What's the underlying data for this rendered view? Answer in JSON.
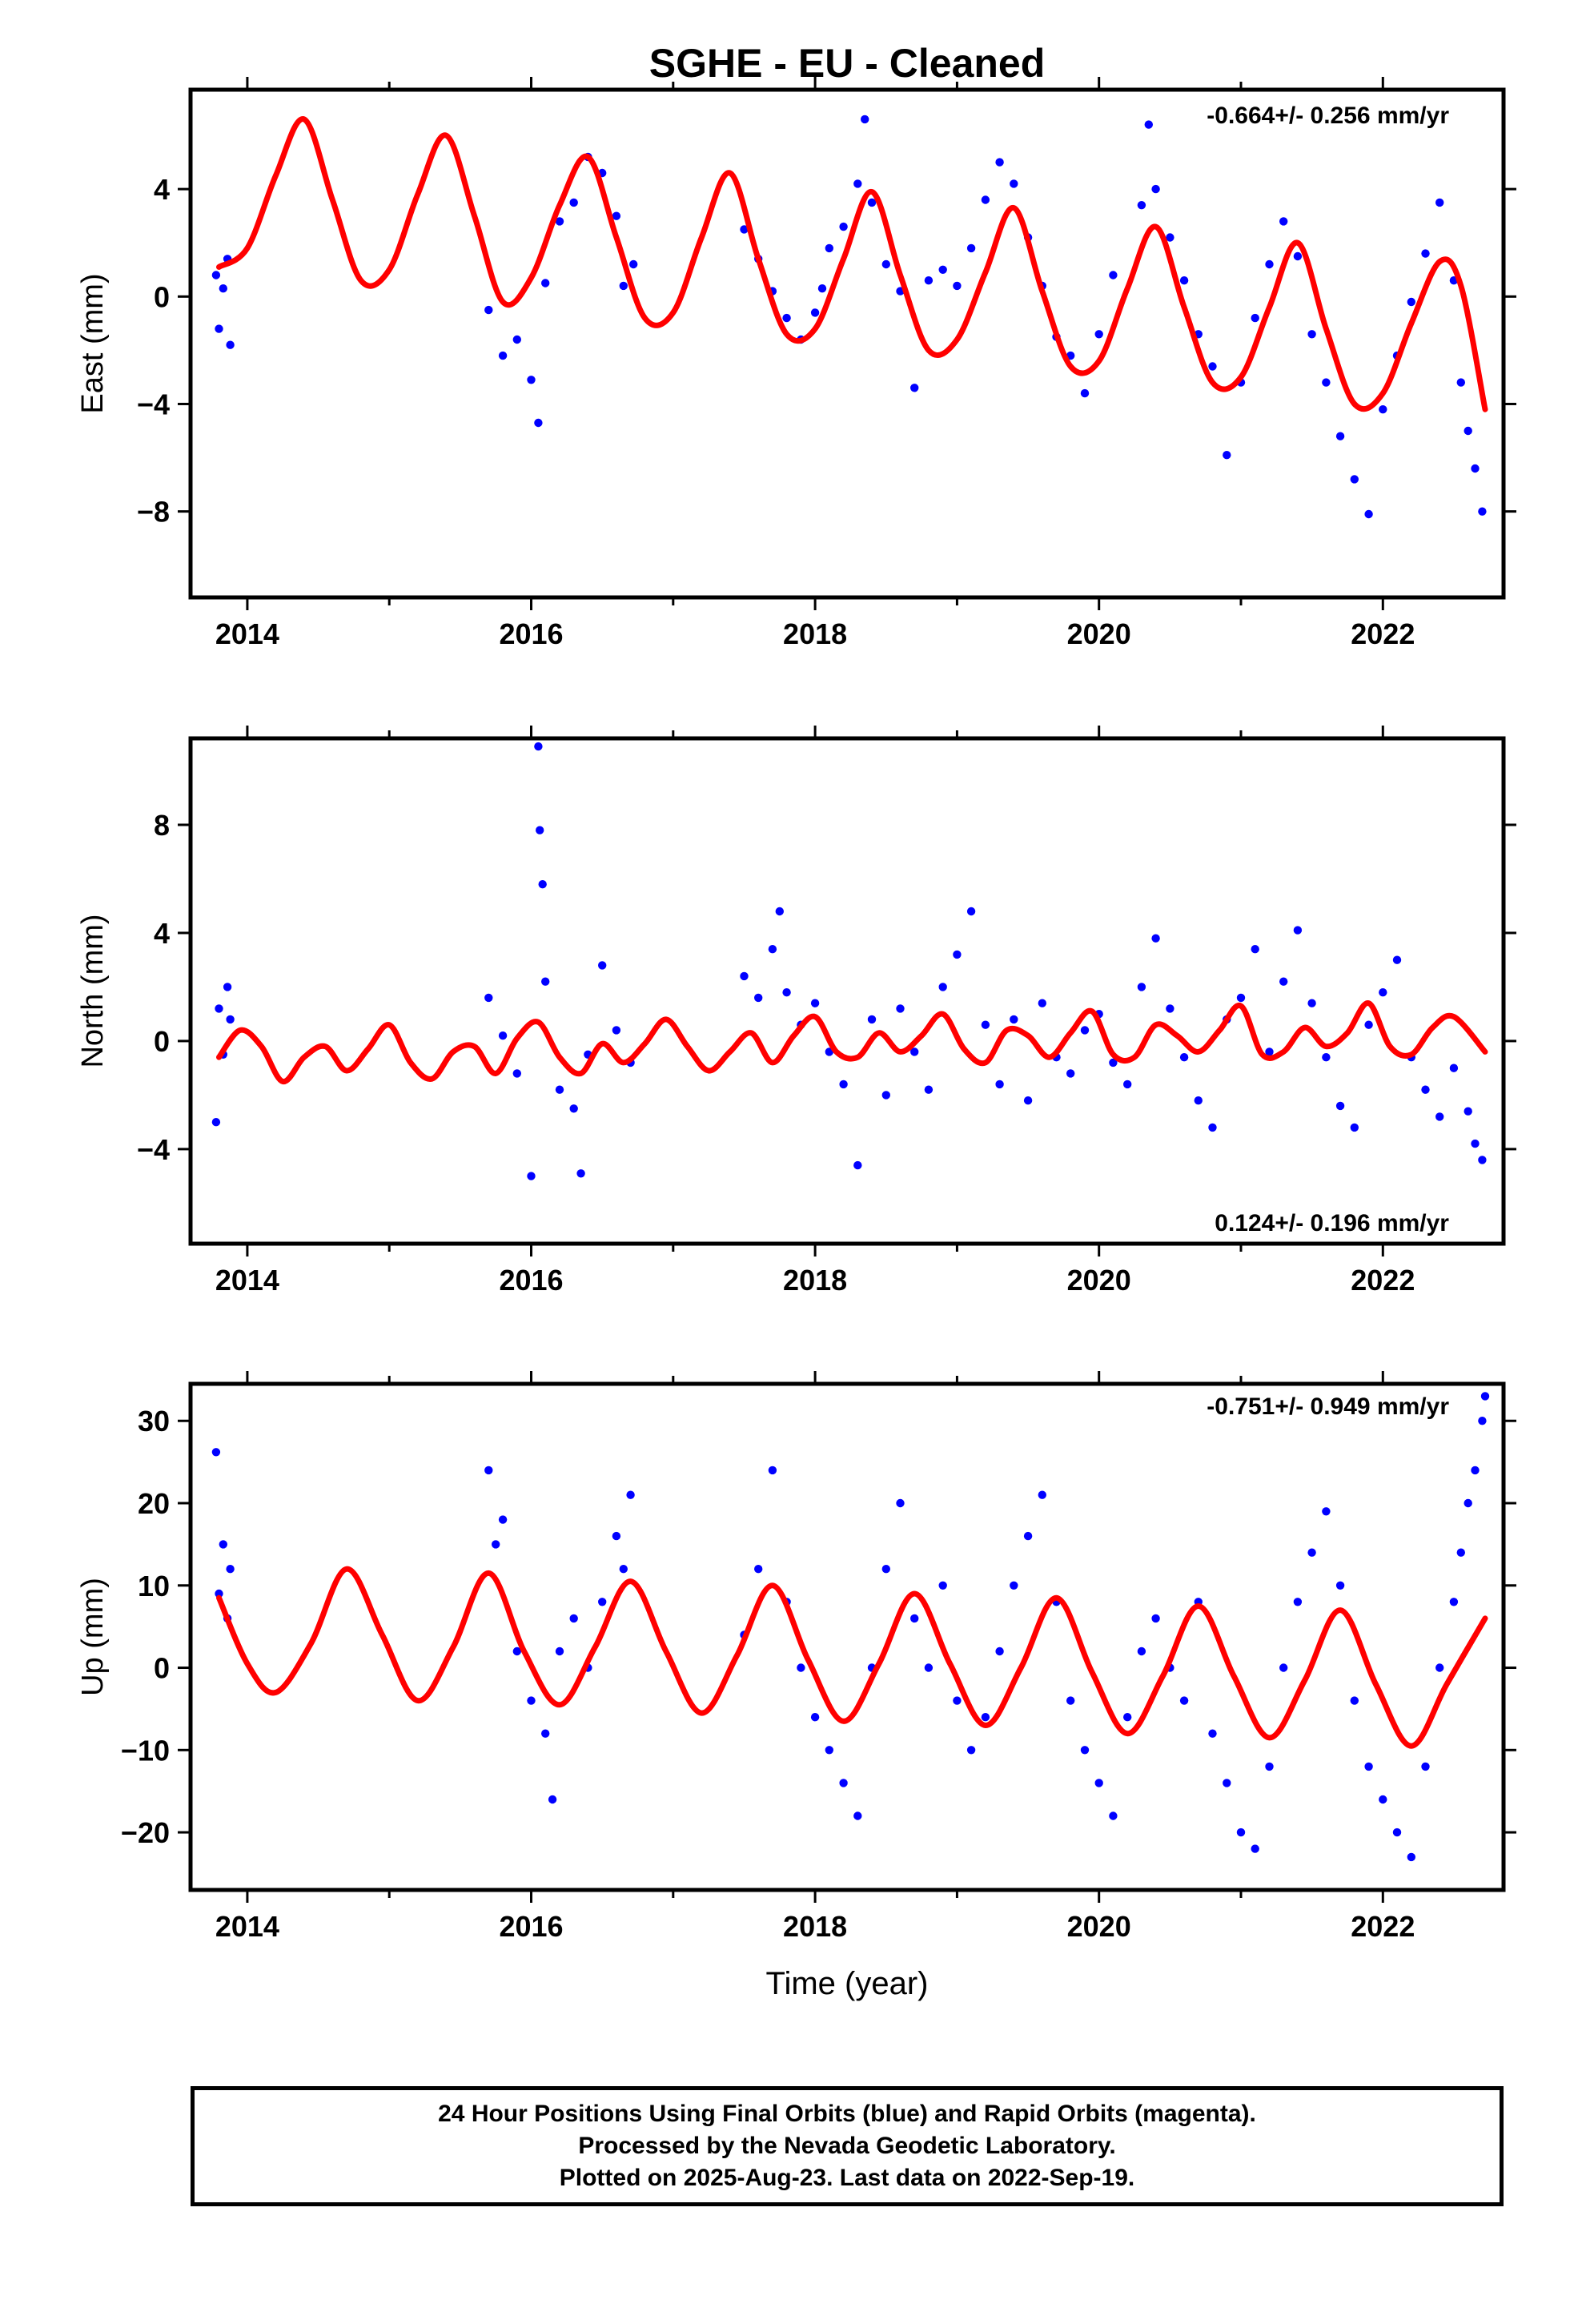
{
  "title": "SGHE  - EU - Cleaned",
  "xlabel": "Time (year)",
  "footer": {
    "line1": "24 Hour Positions Using Final Orbits (blue) and Rapid Orbits (magenta).",
    "line2": "Processed by the Nevada Geodetic Laboratory.",
    "line3": "Plotted on 2025-Aug-23. Last data on 2022-Sep-19."
  },
  "colors": {
    "points": "#0000ff",
    "model": "#ff0000",
    "frame": "#000000"
  },
  "chart_data": [
    {
      "type": "scatter",
      "ylabel": "East (mm)",
      "rate_label": "-0.664+/- 0.256 mm/yr",
      "xlim": [
        2013.6,
        2022.85
      ],
      "ylim": [
        -11.2,
        7.7
      ],
      "xticks": [
        2014,
        2016,
        2018,
        2020,
        2022
      ],
      "xticklabels": [
        "2014",
        "2016",
        "2018",
        "2020",
        "2022"
      ],
      "yticks": [
        -8,
        -4,
        0,
        4
      ],
      "yticklabels": [
        "−8",
        "−4",
        "0",
        "4"
      ],
      "series": [
        {
          "kind": "points",
          "x": [
            2013.78,
            2013.8,
            2013.83,
            2013.86,
            2013.88,
            2015.7,
            2015.8,
            2015.9,
            2016.0,
            2016.05,
            2016.1,
            2016.2,
            2016.3,
            2016.4,
            2016.5,
            2016.6,
            2016.65,
            2016.72,
            2017.5,
            2017.6,
            2017.7,
            2017.8,
            2017.9,
            2018.0,
            2018.05,
            2018.1,
            2018.2,
            2018.3,
            2018.35,
            2018.4,
            2018.5,
            2018.6,
            2018.7,
            2018.8,
            2018.9,
            2019.0,
            2019.1,
            2019.2,
            2019.3,
            2019.4,
            2019.5,
            2019.6,
            2019.7,
            2019.8,
            2019.9,
            2020.0,
            2020.1,
            2020.3,
            2020.35,
            2020.4,
            2020.5,
            2020.6,
            2020.7,
            2020.8,
            2020.9,
            2021.0,
            2021.1,
            2021.2,
            2021.3,
            2021.4,
            2021.5,
            2021.6,
            2021.7,
            2021.8,
            2021.9,
            2022.0,
            2022.1,
            2022.2,
            2022.3,
            2022.4,
            2022.5,
            2022.55,
            2022.6,
            2022.65,
            2022.7
          ],
          "y": [
            0.8,
            -1.2,
            0.3,
            1.4,
            -1.8,
            -0.5,
            -2.2,
            -1.6,
            -3.1,
            -4.7,
            0.5,
            2.8,
            3.5,
            5.2,
            4.6,
            3.0,
            0.4,
            1.2,
            2.5,
            1.4,
            0.2,
            -0.8,
            -1.6,
            -0.6,
            0.3,
            1.8,
            2.6,
            4.2,
            6.6,
            3.5,
            1.2,
            0.2,
            -3.4,
            0.6,
            1.0,
            0.4,
            1.8,
            3.6,
            5.0,
            4.2,
            2.2,
            0.4,
            -1.5,
            -2.2,
            -3.6,
            -1.4,
            0.8,
            3.4,
            6.4,
            4.0,
            2.2,
            0.6,
            -1.4,
            -2.6,
            -5.9,
            -3.2,
            -0.8,
            1.2,
            2.8,
            1.5,
            -1.4,
            -3.2,
            -5.2,
            -6.8,
            -8.1,
            -4.2,
            -2.2,
            -0.2,
            1.6,
            3.5,
            0.6,
            -3.2,
            -5.0,
            -6.4,
            -8.0
          ],
          "color": "#0000ff"
        },
        {
          "kind": "line",
          "x": [
            2013.8,
            2014.0,
            2014.2,
            2014.4,
            2014.6,
            2014.8,
            2015.0,
            2015.2,
            2015.4,
            2015.6,
            2015.8,
            2016.0,
            2016.2,
            2016.4,
            2016.6,
            2016.8,
            2017.0,
            2017.2,
            2017.4,
            2017.6,
            2017.8,
            2018.0,
            2018.2,
            2018.4,
            2018.6,
            2018.8,
            2019.0,
            2019.2,
            2019.4,
            2019.6,
            2019.8,
            2020.0,
            2020.2,
            2020.4,
            2020.6,
            2020.8,
            2021.0,
            2021.2,
            2021.4,
            2021.6,
            2021.8,
            2022.0,
            2022.2,
            2022.4,
            2022.55,
            2022.72
          ],
          "y": [
            1.1,
            1.8,
            4.5,
            6.6,
            3.6,
            0.6,
            1.0,
            3.8,
            6.0,
            3.0,
            -0.2,
            0.7,
            3.4,
            5.2,
            2.2,
            -0.8,
            -0.6,
            2.2,
            4.6,
            1.4,
            -1.4,
            -1.2,
            1.4,
            3.9,
            0.8,
            -2.0,
            -1.6,
            0.9,
            3.3,
            0.2,
            -2.6,
            -2.4,
            0.3,
            2.6,
            -0.4,
            -3.2,
            -3.0,
            -0.4,
            2.0,
            -1.2,
            -4.0,
            -3.6,
            -1.0,
            1.3,
            0.4,
            -4.2
          ],
          "color": "#ff0000"
        }
      ]
    },
    {
      "type": "scatter",
      "ylabel": "North (mm)",
      "rate_label": "0.124+/- 0.196 mm/yr",
      "xlim": [
        2013.6,
        2022.85
      ],
      "ylim": [
        -7.5,
        11.2
      ],
      "xticks": [
        2014,
        2016,
        2018,
        2020,
        2022
      ],
      "xticklabels": [
        "2014",
        "2016",
        "2018",
        "2020",
        "2022"
      ],
      "yticks": [
        -4,
        0,
        4,
        8
      ],
      "yticklabels": [
        "−4",
        "0",
        "4",
        "8"
      ],
      "series": [
        {
          "kind": "points",
          "x": [
            2013.78,
            2013.8,
            2013.83,
            2013.86,
            2013.88,
            2015.7,
            2015.8,
            2015.9,
            2016.0,
            2016.05,
            2016.06,
            2016.08,
            2016.1,
            2016.2,
            2016.3,
            2016.35,
            2016.4,
            2016.5,
            2016.6,
            2016.7,
            2017.5,
            2017.6,
            2017.7,
            2017.75,
            2017.8,
            2017.9,
            2018.0,
            2018.1,
            2018.2,
            2018.3,
            2018.4,
            2018.5,
            2018.6,
            2018.7,
            2018.8,
            2018.9,
            2019.0,
            2019.1,
            2019.2,
            2019.3,
            2019.4,
            2019.5,
            2019.6,
            2019.7,
            2019.8,
            2019.9,
            2020.0,
            2020.1,
            2020.2,
            2020.3,
            2020.4,
            2020.5,
            2020.6,
            2020.7,
            2020.8,
            2020.9,
            2021.0,
            2021.1,
            2021.2,
            2021.3,
            2021.4,
            2021.5,
            2021.6,
            2021.7,
            2021.8,
            2021.9,
            2022.0,
            2022.1,
            2022.2,
            2022.3,
            2022.4,
            2022.5,
            2022.6,
            2022.65,
            2022.7
          ],
          "y": [
            -3.0,
            1.2,
            -0.5,
            2.0,
            0.8,
            1.6,
            0.2,
            -1.2,
            -5.0,
            10.9,
            7.8,
            5.8,
            2.2,
            -1.8,
            -2.5,
            -4.9,
            -0.5,
            2.8,
            0.4,
            -0.8,
            2.4,
            1.6,
            3.4,
            4.8,
            1.8,
            0.6,
            1.4,
            -0.4,
            -1.6,
            -4.6,
            0.8,
            -2.0,
            1.2,
            -0.4,
            -1.8,
            2.0,
            3.2,
            4.8,
            0.6,
            -1.6,
            0.8,
            -2.2,
            1.4,
            -0.6,
            -1.2,
            0.4,
            1.0,
            -0.8,
            -1.6,
            2.0,
            3.8,
            1.2,
            -0.6,
            -2.2,
            -3.2,
            0.8,
            1.6,
            3.4,
            -0.4,
            2.2,
            4.1,
            1.4,
            -0.6,
            -2.4,
            -3.2,
            0.6,
            1.8,
            3.0,
            -0.6,
            -1.8,
            -2.8,
            -1.0,
            -2.6,
            -3.8,
            -4.4
          ],
          "color": "#0000ff"
        },
        {
          "kind": "line",
          "x": [
            2013.8,
            2013.95,
            2014.1,
            2014.25,
            2014.4,
            2014.55,
            2014.7,
            2014.85,
            2015.0,
            2015.15,
            2015.3,
            2015.45,
            2015.6,
            2015.75,
            2015.9,
            2016.05,
            2016.2,
            2016.35,
            2016.5,
            2016.65,
            2016.8,
            2016.95,
            2017.1,
            2017.25,
            2017.4,
            2017.55,
            2017.7,
            2017.85,
            2018.0,
            2018.15,
            2018.3,
            2018.45,
            2018.6,
            2018.75,
            2018.9,
            2019.05,
            2019.2,
            2019.35,
            2019.5,
            2019.65,
            2019.8,
            2019.95,
            2020.1,
            2020.25,
            2020.4,
            2020.55,
            2020.7,
            2020.85,
            2021.0,
            2021.15,
            2021.3,
            2021.45,
            2021.6,
            2021.75,
            2021.9,
            2022.05,
            2022.2,
            2022.35,
            2022.5,
            2022.72
          ],
          "y": [
            -0.6,
            0.4,
            -0.2,
            -1.5,
            -0.6,
            -0.2,
            -1.1,
            -0.3,
            0.6,
            -0.8,
            -1.4,
            -0.4,
            -0.2,
            -1.2,
            0.1,
            0.7,
            -0.6,
            -1.2,
            -0.1,
            -0.8,
            -0.1,
            0.8,
            -0.2,
            -1.1,
            -0.4,
            0.3,
            -0.8,
            0.2,
            0.9,
            -0.4,
            -0.6,
            0.3,
            -0.4,
            0.2,
            1.0,
            -0.3,
            -0.8,
            0.4,
            0.2,
            -0.6,
            0.3,
            1.1,
            -0.5,
            -0.6,
            0.6,
            0.2,
            -0.4,
            0.4,
            1.3,
            -0.5,
            -0.4,
            0.5,
            -0.2,
            0.3,
            1.4,
            -0.2,
            -0.5,
            0.5,
            0.9,
            -0.4
          ],
          "color": "#ff0000"
        }
      ]
    },
    {
      "type": "scatter",
      "ylabel": "Up (mm)",
      "rate_label": "-0.751+/- 0.949 mm/yr",
      "xlim": [
        2013.6,
        2022.85
      ],
      "ylim": [
        -27,
        34.5
      ],
      "xticks": [
        2014,
        2016,
        2018,
        2020,
        2022
      ],
      "xticklabels": [
        "2014",
        "2016",
        "2018",
        "2020",
        "2022"
      ],
      "yticks": [
        -20,
        -10,
        0,
        10,
        20,
        30
      ],
      "yticklabels": [
        "−20",
        "−10",
        "0",
        "10",
        "20",
        "30"
      ],
      "series": [
        {
          "kind": "points",
          "x": [
            2013.78,
            2013.8,
            2013.83,
            2013.86,
            2013.88,
            2015.7,
            2015.75,
            2015.8,
            2015.9,
            2016.0,
            2016.1,
            2016.15,
            2016.2,
            2016.3,
            2016.4,
            2016.5,
            2016.6,
            2016.65,
            2016.7,
            2017.5,
            2017.6,
            2017.7,
            2017.8,
            2017.9,
            2018.0,
            2018.1,
            2018.2,
            2018.3,
            2018.4,
            2018.5,
            2018.6,
            2018.7,
            2018.8,
            2018.9,
            2019.0,
            2019.1,
            2019.2,
            2019.3,
            2019.4,
            2019.5,
            2019.6,
            2019.7,
            2019.8,
            2019.9,
            2020.0,
            2020.1,
            2020.2,
            2020.3,
            2020.4,
            2020.5,
            2020.6,
            2020.7,
            2020.8,
            2020.9,
            2021.0,
            2021.1,
            2021.2,
            2021.3,
            2021.4,
            2021.5,
            2021.6,
            2021.7,
            2021.8,
            2021.9,
            2022.0,
            2022.1,
            2022.2,
            2022.3,
            2022.4,
            2022.5,
            2022.55,
            2022.6,
            2022.65,
            2022.7,
            2022.72
          ],
          "y": [
            26.2,
            9.0,
            15.0,
            6.0,
            12.0,
            24.0,
            15.0,
            18.0,
            2.0,
            -4.0,
            -8.0,
            -16.0,
            2.0,
            6.0,
            0.0,
            8.0,
            16.0,
            12.0,
            21.0,
            4.0,
            12.0,
            24.0,
            8.0,
            0.0,
            -6.0,
            -10.0,
            -14.0,
            -18.0,
            0.0,
            12.0,
            20.0,
            6.0,
            0.0,
            10.0,
            -4.0,
            -10.0,
            -6.0,
            2.0,
            10.0,
            16.0,
            21.0,
            8.0,
            -4.0,
            -10.0,
            -14.0,
            -18.0,
            -6.0,
            2.0,
            6.0,
            0.0,
            -4.0,
            8.0,
            -8.0,
            -14.0,
            -20.0,
            -22.0,
            -12.0,
            0.0,
            8.0,
            14.0,
            19.0,
            10.0,
            -4.0,
            -12.0,
            -16.0,
            -20.0,
            -23.0,
            -12.0,
            0.0,
            8.0,
            14.0,
            20.0,
            24.0,
            30.0,
            33.0
          ],
          "color": "#0000ff"
        },
        {
          "kind": "line",
          "x": [
            2013.8,
            2014.0,
            2014.2,
            2014.45,
            2014.7,
            2014.95,
            2015.2,
            2015.45,
            2015.7,
            2015.95,
            2016.2,
            2016.45,
            2016.7,
            2016.95,
            2017.2,
            2017.45,
            2017.7,
            2017.95,
            2018.2,
            2018.45,
            2018.7,
            2018.95,
            2019.2,
            2019.45,
            2019.7,
            2019.95,
            2020.2,
            2020.45,
            2020.7,
            2020.95,
            2021.2,
            2021.45,
            2021.7,
            2021.95,
            2022.2,
            2022.45,
            2022.72
          ],
          "y": [
            8.5,
            0.5,
            -3.0,
            3.0,
            12.0,
            4.0,
            -4.0,
            2.5,
            11.5,
            2.0,
            -4.5,
            2.5,
            10.5,
            2.0,
            -5.5,
            1.5,
            10.0,
            1.0,
            -6.5,
            0.5,
            9.0,
            0.5,
            -7.0,
            0.0,
            8.5,
            -0.5,
            -8.0,
            -1.0,
            7.5,
            -1.0,
            -8.5,
            -1.5,
            7.0,
            -2.0,
            -9.5,
            -2.0,
            6.0
          ],
          "color": "#ff0000"
        }
      ]
    }
  ]
}
